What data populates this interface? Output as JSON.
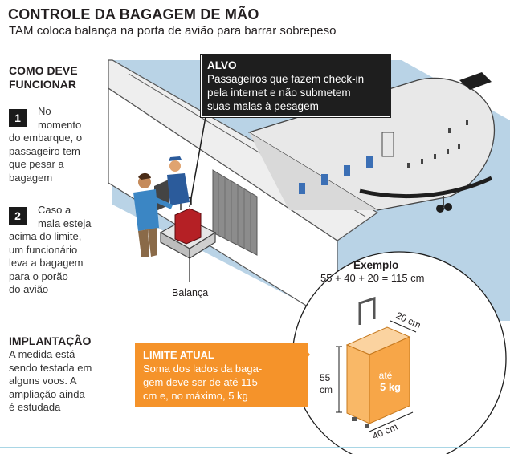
{
  "header": {
    "title": "CONTROLE DA BAGAGEM DE MÃO",
    "subtitle": "TAM coloca balança na porta de avião para barrar sobrepeso"
  },
  "how_it_works": {
    "title_line1": "COMO DEVE",
    "title_line2": "FUNCIONAR",
    "steps": [
      {
        "number": "1",
        "lines": [
          "No",
          "momento",
          "do embarque, o",
          "passageiro tem",
          "que pesar a",
          "bagagem"
        ]
      },
      {
        "number": "2",
        "lines": [
          "Caso a",
          "mala esteja",
          "acima do limite,",
          "um funcionário",
          "leva a bagagem",
          "para o porão",
          "do avião"
        ]
      }
    ]
  },
  "implementation": {
    "title": "IMPLANTAÇÃO",
    "lines": [
      "A medida está",
      "sendo testada em",
      "alguns voos. A",
      "ampliação ainda",
      "é estudada"
    ]
  },
  "target_callout": {
    "title": "ALVO",
    "lines": [
      "Passageiros que fazem check-in",
      "pela internet e não submetem",
      "suas malas à pesagem"
    ]
  },
  "scale_label": "Balança",
  "example": {
    "title": "Exemplo",
    "formula": "55 + 40 + 20  = 115 cm",
    "dim_depth": "20 cm",
    "dim_height_value": "55",
    "dim_height_unit": "cm",
    "dim_width": "40 cm",
    "weight_line1": "até",
    "weight_line2": "5 kg"
  },
  "limit": {
    "title": "LIMITE ATUAL",
    "lines": [
      "Soma dos lados da baga-",
      "gem deve ser de até 115",
      "cm e, no máximo, 5 kg"
    ]
  },
  "colors": {
    "orange": "#f5932a",
    "light_orange": "#f9be73",
    "ground_blue": "#b9d3e6",
    "plane_gray": "#e6e6e6",
    "window_blue": "#3b6fb5",
    "dark": "#1e1e1e"
  }
}
